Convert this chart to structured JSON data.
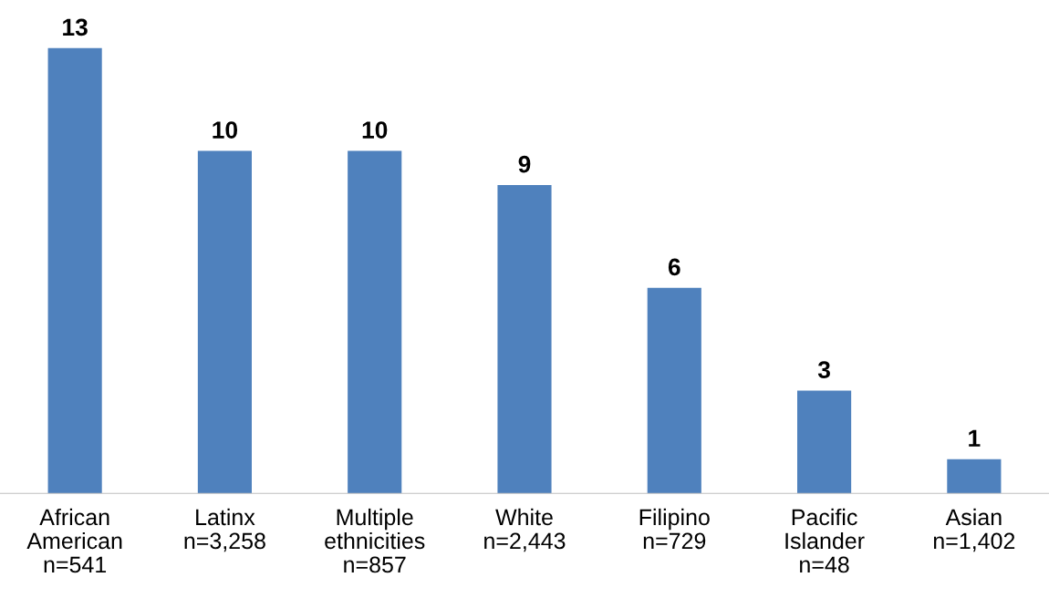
{
  "chart_data": {
    "type": "bar",
    "categories": [
      "African\nAmerican\nn=541",
      "Latinx\nn=3,258",
      "Multiple\nethnicities\nn=857",
      "White\nn=2,443",
      "Filipino\nn=729",
      "Pacific\nIslander\nn=48",
      "Asian\nn=1,402"
    ],
    "values": [
      13,
      10,
      10,
      9,
      6,
      3,
      1
    ],
    "color": "#4f81bd",
    "data_labels": true,
    "grid": false,
    "legend": false
  }
}
